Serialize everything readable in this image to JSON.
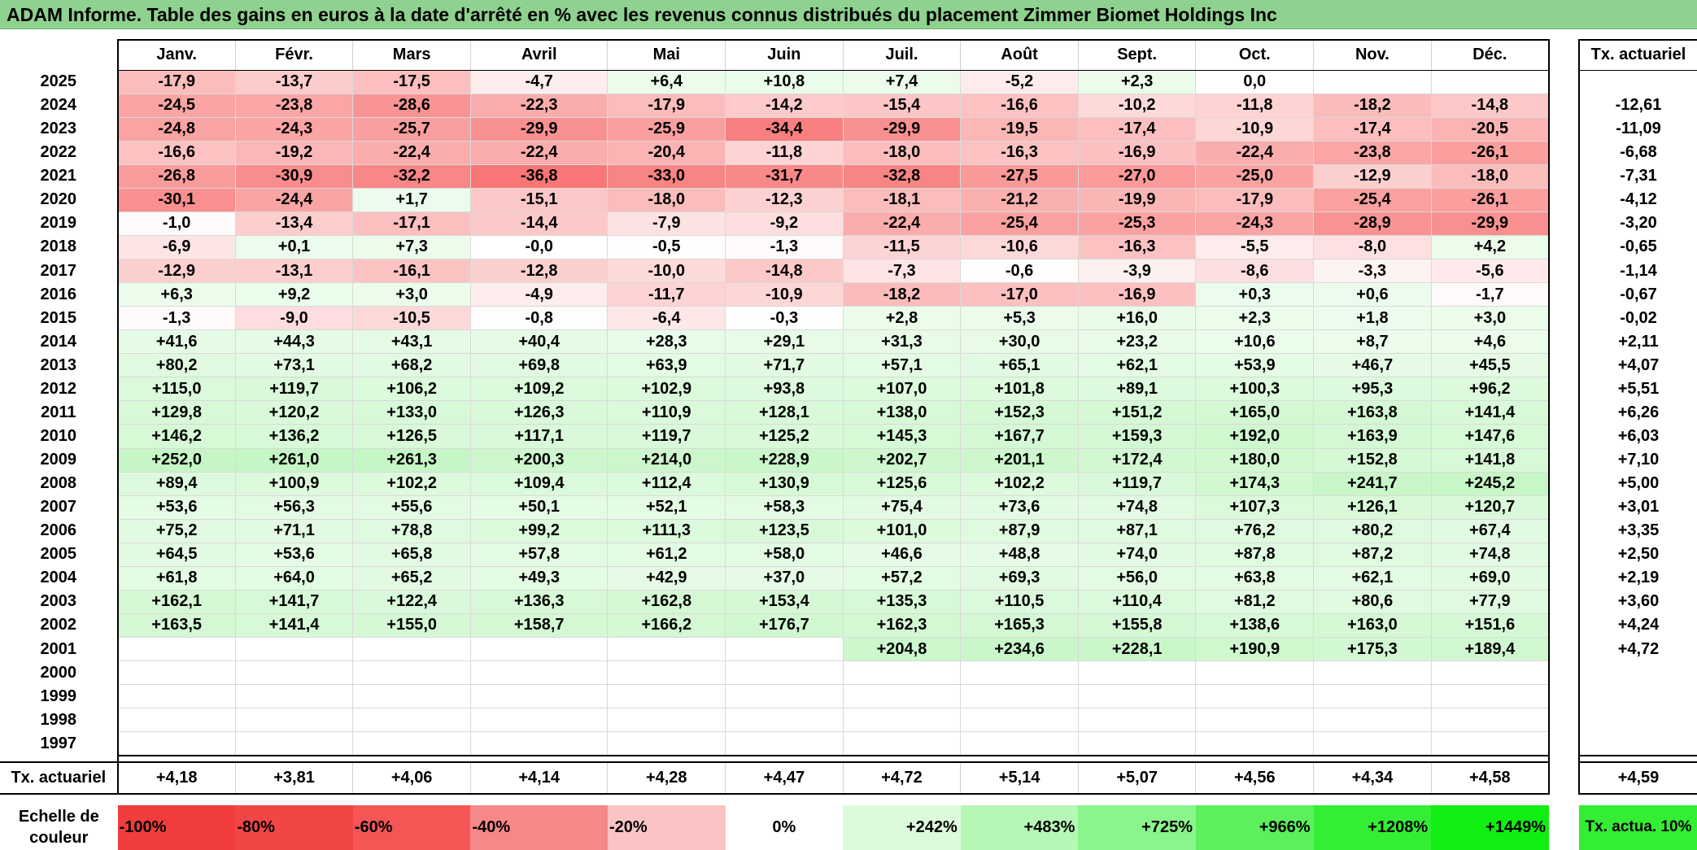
{
  "title": "ADAM Informe. Table des gains en euros à la date d'arrêté en % avec les revenus connus distribués du placement Zimmer Biomet Holdings Inc",
  "months": [
    "Janv.",
    "Févr.",
    "Mars",
    "Avril",
    "Mai",
    "Juin",
    "Juil.",
    "Août",
    "Sept.",
    "Oct.",
    "Nov.",
    "Déc."
  ],
  "actuarial_header": "Tx. actuariel",
  "rows": [
    {
      "year": "2025",
      "values": [
        "-17,9",
        "-13,7",
        "-17,5",
        "-4,7",
        "+6,4",
        "+10,8",
        "+7,4",
        "-5,2",
        "+2,3",
        "0,0",
        "",
        ""
      ],
      "rate": ""
    },
    {
      "year": "2024",
      "values": [
        "-24,5",
        "-23,8",
        "-28,6",
        "-22,3",
        "-17,9",
        "-14,2",
        "-15,4",
        "-16,6",
        "-10,2",
        "-11,8",
        "-18,2",
        "-14,8"
      ],
      "rate": "-12,61"
    },
    {
      "year": "2023",
      "values": [
        "-24,8",
        "-24,3",
        "-25,7",
        "-29,9",
        "-25,9",
        "-34,4",
        "-29,9",
        "-19,5",
        "-17,4",
        "-10,9",
        "-17,4",
        "-20,5"
      ],
      "rate": "-11,09"
    },
    {
      "year": "2022",
      "values": [
        "-16,6",
        "-19,2",
        "-22,4",
        "-22,4",
        "-20,4",
        "-11,8",
        "-18,0",
        "-16,3",
        "-16,9",
        "-22,4",
        "-23,8",
        "-26,1"
      ],
      "rate": "-6,68"
    },
    {
      "year": "2021",
      "values": [
        "-26,8",
        "-30,9",
        "-32,2",
        "-36,8",
        "-33,0",
        "-31,7",
        "-32,8",
        "-27,5",
        "-27,0",
        "-25,0",
        "-12,9",
        "-18,0"
      ],
      "rate": "-7,31"
    },
    {
      "year": "2020",
      "values": [
        "-30,1",
        "-24,4",
        "+1,7",
        "-15,1",
        "-18,0",
        "-12,3",
        "-18,1",
        "-21,2",
        "-19,9",
        "-17,9",
        "-25,4",
        "-26,1"
      ],
      "rate": "-4,12"
    },
    {
      "year": "2019",
      "values": [
        "-1,0",
        "-13,4",
        "-17,1",
        "-14,4",
        "-7,9",
        "-9,2",
        "-22,4",
        "-25,4",
        "-25,3",
        "-24,3",
        "-28,9",
        "-29,9"
      ],
      "rate": "-3,20"
    },
    {
      "year": "2018",
      "values": [
        "-6,9",
        "+0,1",
        "+7,3",
        "-0,0",
        "-0,5",
        "-1,3",
        "-11,5",
        "-10,6",
        "-16,3",
        "-5,5",
        "-8,0",
        "+4,2"
      ],
      "rate": "-0,65"
    },
    {
      "year": "2017",
      "values": [
        "-12,9",
        "-13,1",
        "-16,1",
        "-12,8",
        "-10,0",
        "-14,8",
        "-7,3",
        "-0,6",
        "-3,9",
        "-8,6",
        "-3,3",
        "-5,6"
      ],
      "rate": "-1,14"
    },
    {
      "year": "2016",
      "values": [
        "+6,3",
        "+9,2",
        "+3,0",
        "-4,9",
        "-11,7",
        "-10,9",
        "-18,2",
        "-17,0",
        "-16,9",
        "+0,3",
        "+0,6",
        "-1,7"
      ],
      "rate": "-0,67"
    },
    {
      "year": "2015",
      "values": [
        "-1,3",
        "-9,0",
        "-10,5",
        "-0,8",
        "-6,4",
        "-0,3",
        "+2,8",
        "+5,3",
        "+16,0",
        "+2,3",
        "+1,8",
        "+3,0"
      ],
      "rate": "-0,02"
    },
    {
      "year": "2014",
      "values": [
        "+41,6",
        "+44,3",
        "+43,1",
        "+40,4",
        "+28,3",
        "+29,1",
        "+31,3",
        "+30,0",
        "+23,2",
        "+10,6",
        "+8,7",
        "+4,6"
      ],
      "rate": "+2,11"
    },
    {
      "year": "2013",
      "values": [
        "+80,2",
        "+73,1",
        "+68,2",
        "+69,8",
        "+63,9",
        "+71,7",
        "+57,1",
        "+65,1",
        "+62,1",
        "+53,9",
        "+46,7",
        "+45,5"
      ],
      "rate": "+4,07"
    },
    {
      "year": "2012",
      "values": [
        "+115,0",
        "+119,7",
        "+106,2",
        "+109,2",
        "+102,9",
        "+93,8",
        "+107,0",
        "+101,8",
        "+89,1",
        "+100,3",
        "+95,3",
        "+96,2"
      ],
      "rate": "+5,51"
    },
    {
      "year": "2011",
      "values": [
        "+129,8",
        "+120,2",
        "+133,0",
        "+126,3",
        "+110,9",
        "+128,1",
        "+138,0",
        "+152,3",
        "+151,2",
        "+165,0",
        "+163,8",
        "+141,4"
      ],
      "rate": "+6,26"
    },
    {
      "year": "2010",
      "values": [
        "+146,2",
        "+136,2",
        "+126,5",
        "+117,1",
        "+119,7",
        "+125,2",
        "+145,3",
        "+167,7",
        "+159,3",
        "+192,0",
        "+163,9",
        "+147,6"
      ],
      "rate": "+6,03"
    },
    {
      "year": "2009",
      "values": [
        "+252,0",
        "+261,0",
        "+261,3",
        "+200,3",
        "+214,0",
        "+228,9",
        "+202,7",
        "+201,1",
        "+172,4",
        "+180,0",
        "+152,8",
        "+141,8"
      ],
      "rate": "+7,10"
    },
    {
      "year": "2008",
      "values": [
        "+89,4",
        "+100,9",
        "+102,2",
        "+109,4",
        "+112,4",
        "+130,9",
        "+125,6",
        "+102,2",
        "+119,7",
        "+174,3",
        "+241,7",
        "+245,2"
      ],
      "rate": "+5,00"
    },
    {
      "year": "2007",
      "values": [
        "+53,6",
        "+56,3",
        "+55,6",
        "+50,1",
        "+52,1",
        "+58,3",
        "+75,4",
        "+73,6",
        "+74,8",
        "+107,3",
        "+126,1",
        "+120,7"
      ],
      "rate": "+3,01"
    },
    {
      "year": "2006",
      "values": [
        "+75,2",
        "+71,1",
        "+78,8",
        "+99,2",
        "+111,3",
        "+123,5",
        "+101,0",
        "+87,9",
        "+87,1",
        "+76,2",
        "+80,2",
        "+67,4"
      ],
      "rate": "+3,35"
    },
    {
      "year": "2005",
      "values": [
        "+64,5",
        "+53,6",
        "+65,8",
        "+57,8",
        "+61,2",
        "+58,0",
        "+46,6",
        "+48,8",
        "+74,0",
        "+87,8",
        "+87,2",
        "+74,8"
      ],
      "rate": "+2,50"
    },
    {
      "year": "2004",
      "values": [
        "+61,8",
        "+64,0",
        "+65,2",
        "+49,3",
        "+42,9",
        "+37,0",
        "+57,2",
        "+69,3",
        "+56,0",
        "+63,8",
        "+62,1",
        "+69,0"
      ],
      "rate": "+2,19"
    },
    {
      "year": "2003",
      "values": [
        "+162,1",
        "+141,7",
        "+122,4",
        "+136,3",
        "+162,8",
        "+153,4",
        "+135,3",
        "+110,5",
        "+110,4",
        "+81,2",
        "+80,6",
        "+77,9"
      ],
      "rate": "+3,60"
    },
    {
      "year": "2002",
      "values": [
        "+163,5",
        "+141,4",
        "+155,0",
        "+158,7",
        "+166,2",
        "+176,7",
        "+162,3",
        "+165,3",
        "+155,8",
        "+138,6",
        "+163,0",
        "+151,6"
      ],
      "rate": "+4,24"
    },
    {
      "year": "2001",
      "values": [
        "",
        "",
        "",
        "",
        "",
        "",
        "+204,8",
        "+234,6",
        "+228,1",
        "+190,9",
        "+175,3",
        "+189,4"
      ],
      "rate": "+4,72"
    },
    {
      "year": "2000",
      "values": [
        "",
        "",
        "",
        "",
        "",
        "",
        "",
        "",
        "",
        "",
        "",
        ""
      ],
      "rate": ""
    },
    {
      "year": "1999",
      "values": [
        "",
        "",
        "",
        "",
        "",
        "",
        "",
        "",
        "",
        "",
        "",
        ""
      ],
      "rate": ""
    },
    {
      "year": "1998",
      "values": [
        "",
        "",
        "",
        "",
        "",
        "",
        "",
        "",
        "",
        "",
        "",
        ""
      ],
      "rate": ""
    },
    {
      "year": "1997",
      "values": [
        "",
        "",
        "",
        "",
        "",
        "",
        "",
        "",
        "",
        "",
        "",
        ""
      ],
      "rate": ""
    }
  ],
  "totals": {
    "label": "Tx. actuariel",
    "values": [
      "+4,18",
      "+3,81",
      "+4,06",
      "+4,14",
      "+4,28",
      "+4,47",
      "+4,72",
      "+5,14",
      "+5,07",
      "+4,56",
      "+4,34",
      "+4,58"
    ],
    "overall": "+4,59"
  },
  "scale": {
    "label": "Echelle de couleur",
    "items": [
      {
        "text": "-100%",
        "color": "#f03c3c",
        "align": "left"
      },
      {
        "text": "-80%",
        "color": "#f24646",
        "align": "left"
      },
      {
        "text": "-60%",
        "color": "#f45656",
        "align": "left"
      },
      {
        "text": "-40%",
        "color": "#f78888",
        "align": "left"
      },
      {
        "text": "-20%",
        "color": "#fbc4c4",
        "align": "left"
      },
      {
        "text": "0%",
        "color": "#ffffff",
        "align": "center"
      },
      {
        "text": "+242%",
        "color": "#ddfadd",
        "align": "right"
      },
      {
        "text": "+483%",
        "color": "#b6f7b6",
        "align": "right"
      },
      {
        "text": "+725%",
        "color": "#8af58a",
        "align": "right"
      },
      {
        "text": "+966%",
        "color": "#5cf05c",
        "align": "right"
      },
      {
        "text": "+1208%",
        "color": "#33ee33",
        "align": "right"
      },
      {
        "text": "+1449%",
        "color": "#11ee11",
        "align": "right"
      }
    ],
    "rate_label": "Tx. actua. 10%",
    "rate_color": "#33ee33"
  }
}
